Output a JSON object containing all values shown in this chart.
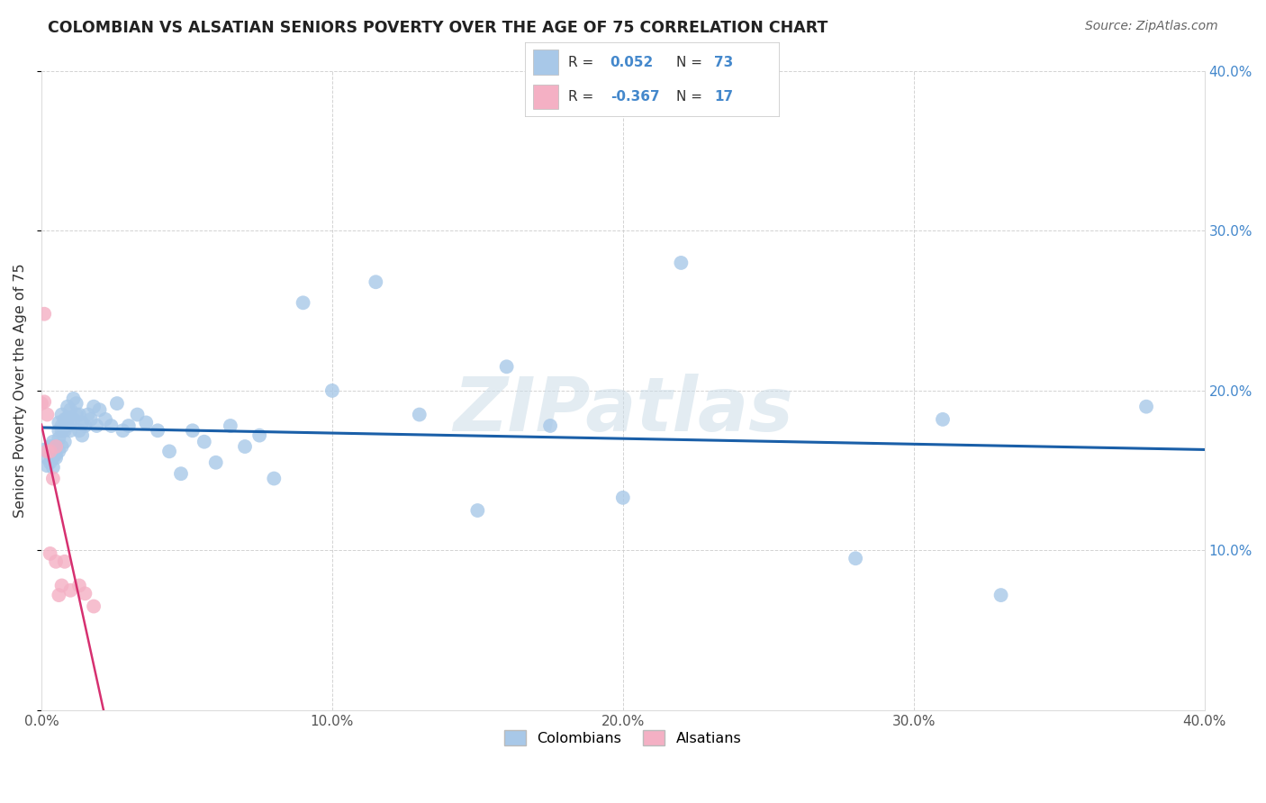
{
  "title": "COLOMBIAN VS ALSATIAN SENIORS POVERTY OVER THE AGE OF 75 CORRELATION CHART",
  "source": "Source: ZipAtlas.com",
  "ylabel": "Seniors Poverty Over the Age of 75",
  "xlim": [
    0.0,
    0.4
  ],
  "ylim": [
    0.0,
    0.4
  ],
  "xticks": [
    0.0,
    0.1,
    0.2,
    0.3,
    0.4
  ],
  "yticks": [
    0.0,
    0.1,
    0.2,
    0.3,
    0.4
  ],
  "xtick_labels": [
    "0.0%",
    "10.0%",
    "20.0%",
    "30.0%",
    "40.0%"
  ],
  "right_ytick_labels": [
    "",
    "10.0%",
    "20.0%",
    "30.0%",
    "40.0%"
  ],
  "colombian_R": "0.052",
  "colombian_N": "73",
  "alsatian_R": "-0.367",
  "alsatian_N": "17",
  "colombian_color": "#a8c8e8",
  "alsatian_color": "#f4b0c4",
  "colombian_line_color": "#1a5fa8",
  "alsatian_line_color": "#d63070",
  "label_color": "#4488cc",
  "watermark_color": "#ccdde8",
  "colombian_x": [
    0.001,
    0.002,
    0.002,
    0.003,
    0.003,
    0.003,
    0.004,
    0.004,
    0.004,
    0.005,
    0.005,
    0.005,
    0.006,
    0.006,
    0.006,
    0.006,
    0.007,
    0.007,
    0.007,
    0.007,
    0.008,
    0.008,
    0.008,
    0.009,
    0.009,
    0.009,
    0.01,
    0.01,
    0.01,
    0.011,
    0.011,
    0.012,
    0.012,
    0.013,
    0.013,
    0.014,
    0.014,
    0.015,
    0.016,
    0.017,
    0.018,
    0.019,
    0.02,
    0.022,
    0.024,
    0.026,
    0.028,
    0.03,
    0.033,
    0.036,
    0.04,
    0.044,
    0.048,
    0.052,
    0.056,
    0.06,
    0.065,
    0.07,
    0.075,
    0.08,
    0.09,
    0.1,
    0.115,
    0.13,
    0.15,
    0.175,
    0.2,
    0.22,
    0.16,
    0.28,
    0.31,
    0.33,
    0.38
  ],
  "colombian_y": [
    0.163,
    0.158,
    0.153,
    0.16,
    0.155,
    0.165,
    0.158,
    0.152,
    0.168,
    0.158,
    0.165,
    0.16,
    0.17,
    0.175,
    0.162,
    0.18,
    0.175,
    0.165,
    0.178,
    0.185,
    0.175,
    0.168,
    0.182,
    0.178,
    0.19,
    0.183,
    0.188,
    0.175,
    0.18,
    0.182,
    0.195,
    0.185,
    0.192,
    0.185,
    0.175,
    0.18,
    0.172,
    0.178,
    0.185,
    0.182,
    0.19,
    0.178,
    0.188,
    0.182,
    0.178,
    0.192,
    0.175,
    0.178,
    0.185,
    0.18,
    0.175,
    0.162,
    0.148,
    0.175,
    0.168,
    0.155,
    0.178,
    0.165,
    0.172,
    0.145,
    0.255,
    0.2,
    0.268,
    0.185,
    0.125,
    0.178,
    0.133,
    0.28,
    0.215,
    0.095,
    0.182,
    0.072,
    0.19
  ],
  "alsatian_x": [
    0.0,
    0.001,
    0.001,
    0.002,
    0.002,
    0.003,
    0.003,
    0.004,
    0.005,
    0.005,
    0.006,
    0.007,
    0.008,
    0.01,
    0.013,
    0.015,
    0.018
  ],
  "alsatian_y": [
    0.192,
    0.248,
    0.193,
    0.162,
    0.185,
    0.162,
    0.098,
    0.145,
    0.093,
    0.165,
    0.072,
    0.078,
    0.093,
    0.075,
    0.078,
    0.073,
    0.065
  ]
}
